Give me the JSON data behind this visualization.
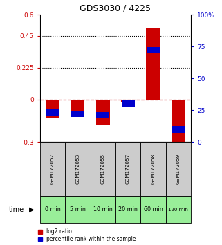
{
  "title": "GDS3030 / 4225",
  "samples": [
    "GSM172052",
    "GSM172053",
    "GSM172055",
    "GSM172057",
    "GSM172058",
    "GSM172059"
  ],
  "times": [
    "0 min",
    "5 min",
    "10 min",
    "20 min",
    "60 min",
    "120 min"
  ],
  "log2_ratio": [
    -0.13,
    -0.11,
    -0.175,
    -0.02,
    0.51,
    -0.32
  ],
  "percentile_rank": [
    23,
    22,
    21,
    30,
    72,
    10
  ],
  "ylim_left": [
    -0.3,
    0.6
  ],
  "ylim_right": [
    0,
    100
  ],
  "yticks_left": [
    -0.3,
    0,
    0.225,
    0.45,
    0.6
  ],
  "yticks_right": [
    0,
    25,
    50,
    75,
    100
  ],
  "ytick_labels_left": [
    "-0.3",
    "0",
    "0.225",
    "0.45",
    "0.6"
  ],
  "ytick_labels_right": [
    "0",
    "25",
    "50",
    "75",
    "100%"
  ],
  "hlines": [
    0.45,
    0.225
  ],
  "bar_color_red": "#cc0000",
  "bar_color_blue": "#0000cc",
  "bg_color_samples": "#cccccc",
  "bg_color_times": "#99ee99",
  "legend_label_red": "log2 ratio",
  "legend_label_blue": "percentile rank within the sample",
  "time_label": "time"
}
